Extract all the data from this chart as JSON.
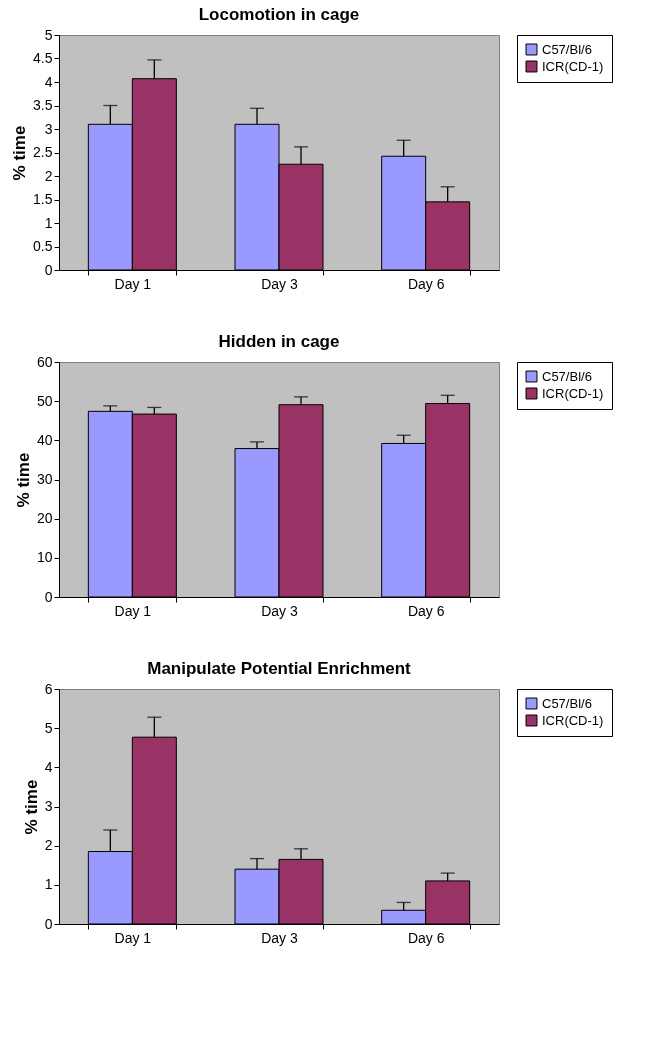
{
  "chart_data": [
    {
      "type": "bar",
      "title": "Locomotion in cage",
      "ylabel": "% time",
      "categories": [
        "Day 1",
        "Day 3",
        "Day 6"
      ],
      "series": [
        {
          "name": "C57/Bl/6",
          "color": "#9999ff",
          "values": [
            3.1,
            3.1,
            2.42
          ],
          "errors": [
            [
              3.1,
              3.5
            ],
            [
              3.1,
              3.44
            ],
            [
              2.42,
              2.76
            ]
          ]
        },
        {
          "name": "ICR(CD-1)",
          "color": "#993366",
          "values": [
            4.07,
            2.25,
            1.45
          ],
          "errors": [
            [
              4.07,
              4.47
            ],
            [
              2.25,
              2.62
            ],
            [
              1.45,
              1.77
            ]
          ]
        }
      ],
      "ylim": [
        0,
        5
      ],
      "yticks": [
        0,
        0.5,
        1,
        1.5,
        2,
        2.5,
        3,
        3.5,
        4,
        4.5,
        5
      ],
      "legend": "right"
    },
    {
      "type": "bar",
      "title": "Hidden in cage",
      "ylabel": "% time",
      "categories": [
        "Day 1",
        "Day 3",
        "Day 6"
      ],
      "series": [
        {
          "name": "C57/Bl/6",
          "color": "#9999ff",
          "values": [
            47.4,
            37.9,
            39.2
          ],
          "errors": [
            [
              47.4,
              48.8
            ],
            [
              37.9,
              39.6
            ],
            [
              39.2,
              41.3
            ]
          ]
        },
        {
          "name": "ICR(CD-1)",
          "color": "#993366",
          "values": [
            46.7,
            49.1,
            49.4
          ],
          "errors": [
            [
              46.7,
              48.4
            ],
            [
              49.1,
              51.1
            ],
            [
              49.4,
              51.5
            ]
          ]
        }
      ],
      "ylim": [
        0,
        60
      ],
      "yticks": [
        0,
        10,
        20,
        30,
        40,
        50,
        60
      ],
      "legend": "right"
    },
    {
      "type": "bar",
      "title": "Manipulate Potential Enrichment",
      "ylabel": "% time",
      "categories": [
        "Day 1",
        "Day 3",
        "Day 6"
      ],
      "series": [
        {
          "name": "C57/Bl/6",
          "color": "#9999ff",
          "values": [
            1.85,
            1.4,
            0.35
          ],
          "errors": [
            [
              1.85,
              2.4
            ],
            [
              1.4,
              1.67
            ],
            [
              0.35,
              0.55
            ]
          ]
        },
        {
          "name": "ICR(CD-1)",
          "color": "#993366",
          "values": [
            4.77,
            1.65,
            1.1
          ],
          "errors": [
            [
              4.77,
              5.28
            ],
            [
              1.65,
              1.92
            ],
            [
              1.1,
              1.3
            ]
          ]
        }
      ],
      "ylim": [
        0,
        6
      ],
      "yticks": [
        0,
        1,
        2,
        3,
        4,
        5,
        6
      ],
      "legend": "right"
    }
  ]
}
